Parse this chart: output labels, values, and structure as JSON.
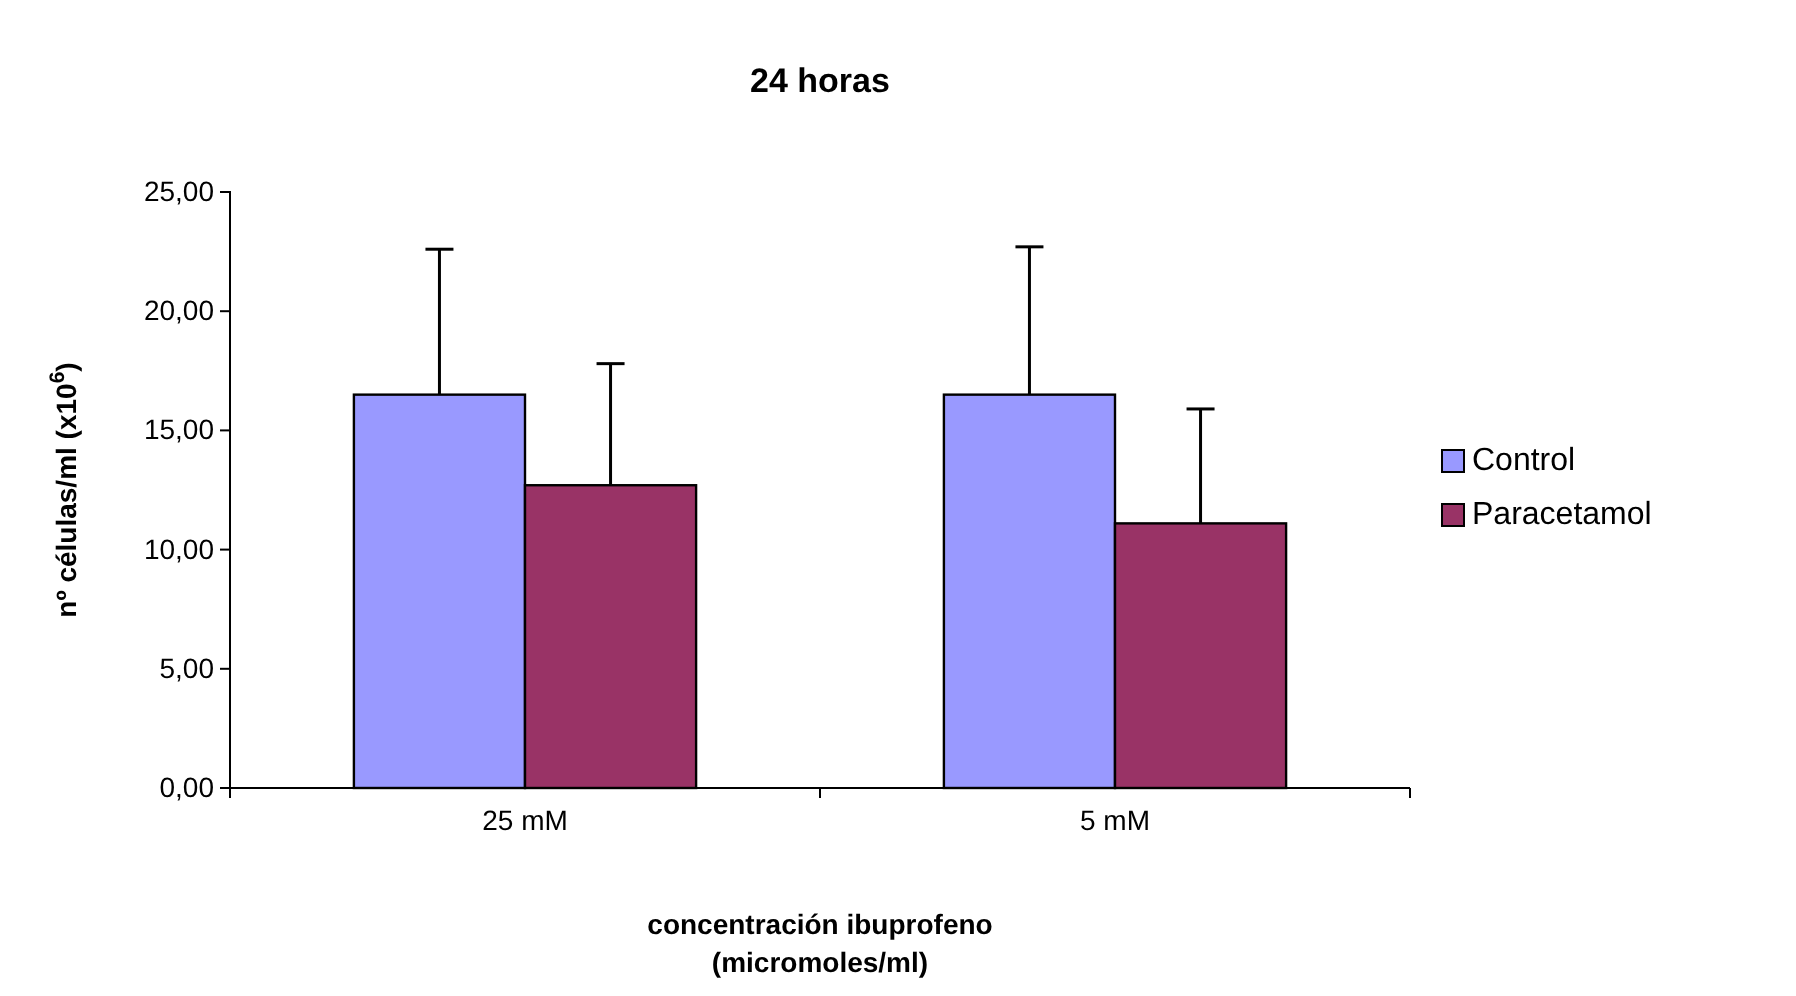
{
  "chart_data": {
    "type": "bar",
    "title": "24 horas",
    "xlabel": "concentración ibuprofeno\n(micromoles/ml)",
    "ylabel": "nº células/ml (x10$^{6}$)",
    "categories": [
      "25 mM",
      "5 mM"
    ],
    "series": [
      {
        "name": "Control",
        "color": "#9999ff",
        "values": [
          16.5,
          16.5
        ],
        "errors": [
          [
            16.5,
            22.6
          ],
          [
            16.5,
            22.7
          ]
        ]
      },
      {
        "name": "Paracetamol",
        "color": "#993366",
        "values": [
          12.7,
          11.1
        ],
        "errors": [
          [
            12.7,
            17.8
          ],
          [
            11.1,
            15.9
          ]
        ]
      }
    ],
    "ylim": [
      0,
      25
    ],
    "yticks": [
      {
        "value": 0,
        "label": "0,00"
      },
      {
        "value": 5,
        "label": "5,00"
      },
      {
        "value": 10,
        "label": "10,00"
      },
      {
        "value": 15,
        "label": "15,00"
      },
      {
        "value": 20,
        "label": "20,00"
      },
      {
        "value": 25,
        "label": "25,00"
      }
    ],
    "legend": "right"
  }
}
